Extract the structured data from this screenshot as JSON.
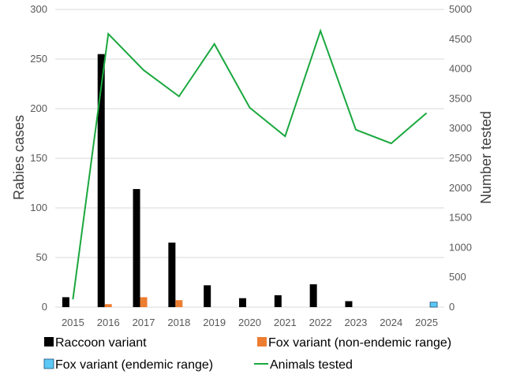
{
  "chart_data": {
    "type": "bar",
    "categories": [
      "2015",
      "2016",
      "2017",
      "2018",
      "2019",
      "2020",
      "2021",
      "2022",
      "2023",
      "2024",
      "2025"
    ],
    "ylabel": "Rabies cases",
    "y2label": "Number tested",
    "ylim": [
      0,
      300
    ],
    "y2lim": [
      0,
      5000
    ],
    "yticks": [
      0,
      50,
      100,
      150,
      200,
      250,
      300
    ],
    "y2ticks": [
      0,
      500,
      1000,
      1500,
      2000,
      2500,
      3000,
      3500,
      4000,
      4500,
      5000
    ],
    "grid": true,
    "legend_position": "bottom",
    "series": [
      {
        "name": "Raccoon variant",
        "type": "bar",
        "axis": "left",
        "color": "#000000",
        "values": [
          10,
          255,
          119,
          65,
          22,
          9,
          12,
          23,
          6,
          0,
          0
        ]
      },
      {
        "name": "Fox variant (non-endemic range)",
        "type": "bar",
        "axis": "left",
        "color": "#ed7d31",
        "values": [
          0,
          3,
          10,
          7,
          0,
          0,
          0,
          0,
          0,
          0,
          0
        ]
      },
      {
        "name": "Fox variant (endemic range)",
        "type": "bar",
        "axis": "left",
        "color": "#5bc8f5",
        "values": [
          0,
          0,
          0,
          0,
          0,
          0,
          0,
          0,
          0,
          0,
          5
        ]
      },
      {
        "name": "Animals tested",
        "type": "line",
        "axis": "right",
        "color": "#1aa83e",
        "values": [
          130,
          4590,
          3980,
          3540,
          4420,
          3350,
          2870,
          4640,
          2980,
          2750,
          3260
        ]
      }
    ]
  }
}
